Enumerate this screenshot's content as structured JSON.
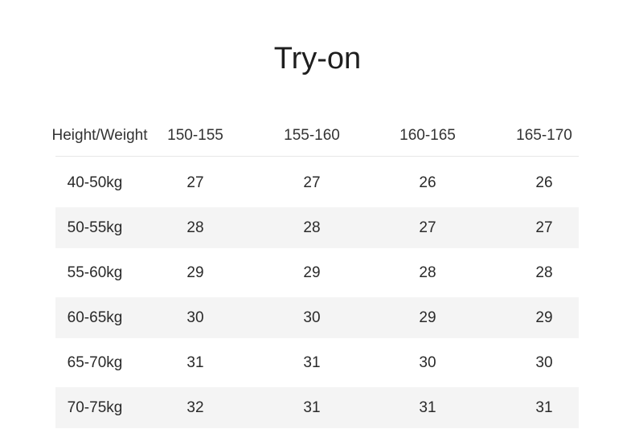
{
  "title": "Try-on",
  "table": {
    "headers": [
      "Height/Weight",
      "150-155",
      "155-160",
      "160-165",
      "165-170"
    ],
    "rows": [
      {
        "label": "40-50kg",
        "values": [
          "27",
          "27",
          "26",
          "26"
        ]
      },
      {
        "label": "50-55kg",
        "values": [
          "28",
          "28",
          "27",
          "27"
        ]
      },
      {
        "label": "55-60kg",
        "values": [
          "29",
          "29",
          "28",
          "28"
        ]
      },
      {
        "label": "60-65kg",
        "values": [
          "30",
          "30",
          "29",
          "29"
        ]
      },
      {
        "label": "65-70kg",
        "values": [
          "31",
          "31",
          "30",
          "30"
        ]
      },
      {
        "label": "70-75kg",
        "values": [
          "32",
          "31",
          "31",
          "31"
        ]
      }
    ]
  },
  "colors": {
    "stripe": "#f4f4f4",
    "text": "#2a2a2a"
  }
}
